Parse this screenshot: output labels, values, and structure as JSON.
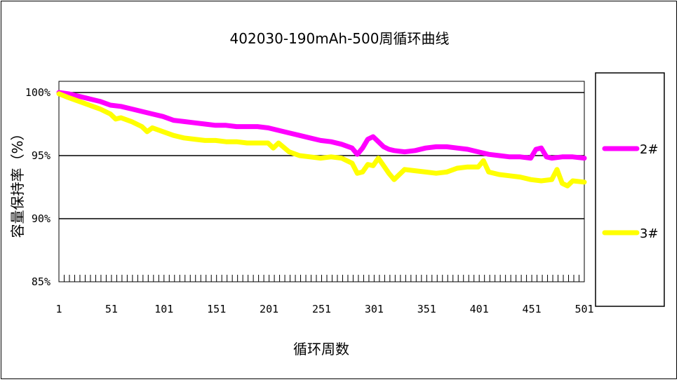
{
  "chart_data": {
    "type": "line",
    "title": "402030-190mAh-500周循环曲线",
    "xlabel": "循环周数",
    "ylabel": "容量保持率（%）",
    "xlim": [
      1,
      501
    ],
    "ylim": [
      85,
      100
    ],
    "x_ticks": [
      "1",
      "51",
      "101",
      "151",
      "201",
      "251",
      "301",
      "351",
      "401",
      "451",
      "501"
    ],
    "y_ticks": [
      "100%",
      "95%",
      "90%",
      "85%"
    ],
    "grid": "horizontal major",
    "legend": "right",
    "series": [
      {
        "name": "2#",
        "color": "#ff00ff",
        "x": [
          1,
          10,
          20,
          30,
          40,
          50,
          60,
          70,
          80,
          90,
          100,
          110,
          120,
          130,
          140,
          150,
          160,
          170,
          180,
          190,
          200,
          210,
          220,
          230,
          240,
          250,
          260,
          270,
          280,
          285,
          290,
          295,
          300,
          305,
          310,
          315,
          320,
          330,
          340,
          350,
          360,
          370,
          380,
          390,
          400,
          410,
          420,
          430,
          440,
          450,
          455,
          460,
          465,
          470,
          480,
          490,
          501
        ],
        "y": [
          100,
          99.9,
          99.7,
          99.5,
          99.3,
          99.0,
          98.9,
          98.7,
          98.5,
          98.3,
          98.1,
          97.8,
          97.7,
          97.6,
          97.5,
          97.4,
          97.4,
          97.3,
          97.3,
          97.3,
          97.2,
          97.0,
          96.8,
          96.6,
          96.4,
          96.2,
          96.1,
          95.9,
          95.6,
          95.1,
          95.6,
          96.3,
          96.5,
          96.1,
          95.7,
          95.5,
          95.4,
          95.3,
          95.4,
          95.6,
          95.7,
          95.7,
          95.6,
          95.5,
          95.3,
          95.1,
          95.0,
          94.9,
          94.9,
          94.8,
          95.5,
          95.6,
          94.9,
          94.8,
          94.9,
          94.9,
          94.8
        ]
      },
      {
        "name": "3#",
        "color": "#ffff00",
        "x": [
          1,
          10,
          20,
          30,
          40,
          50,
          55,
          60,
          70,
          80,
          85,
          90,
          100,
          110,
          120,
          130,
          140,
          150,
          160,
          170,
          180,
          190,
          200,
          205,
          210,
          220,
          230,
          240,
          250,
          260,
          270,
          280,
          285,
          290,
          295,
          300,
          305,
          310,
          315,
          320,
          330,
          340,
          350,
          360,
          370,
          380,
          390,
          400,
          405,
          410,
          420,
          430,
          440,
          450,
          460,
          470,
          475,
          480,
          485,
          490,
          501
        ],
        "y": [
          99.9,
          99.6,
          99.3,
          99.0,
          98.7,
          98.3,
          97.9,
          98.0,
          97.7,
          97.3,
          96.9,
          97.2,
          96.9,
          96.6,
          96.4,
          96.3,
          96.2,
          96.2,
          96.1,
          96.1,
          96.0,
          96.0,
          96.0,
          95.6,
          96.0,
          95.3,
          95.0,
          94.9,
          94.8,
          94.9,
          94.8,
          94.4,
          93.6,
          93.7,
          94.3,
          94.2,
          94.8,
          94.2,
          93.6,
          93.1,
          93.9,
          93.8,
          93.7,
          93.6,
          93.7,
          94.0,
          94.1,
          94.1,
          94.6,
          93.7,
          93.5,
          93.4,
          93.3,
          93.1,
          93.0,
          93.1,
          93.9,
          92.8,
          92.6,
          93.0,
          92.9
        ]
      }
    ]
  }
}
